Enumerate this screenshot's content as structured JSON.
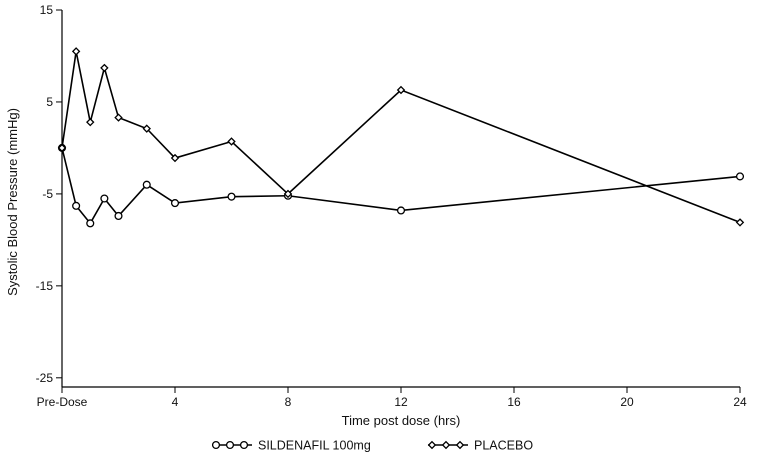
{
  "chart_data": {
    "type": "line",
    "xlabel": "Time post dose (hrs)",
    "ylabel": "Systolic Blood Pressure (mmHg)",
    "xlim": [
      0,
      24
    ],
    "ylim": [
      -26,
      15
    ],
    "xticks": [
      {
        "value": 0,
        "label": "Pre-Dose"
      },
      {
        "value": 4,
        "label": "4"
      },
      {
        "value": 8,
        "label": "8"
      },
      {
        "value": 12,
        "label": "12"
      },
      {
        "value": 16,
        "label": "16"
      },
      {
        "value": 20,
        "label": "20"
      },
      {
        "value": 24,
        "label": "24"
      }
    ],
    "yticks": [
      {
        "value": 15,
        "label": "15"
      },
      {
        "value": 5,
        "label": "5"
      },
      {
        "value": -5,
        "label": "-5"
      },
      {
        "value": -15,
        "label": "-15"
      },
      {
        "value": -25,
        "label": "-25"
      }
    ],
    "grid": false,
    "legend_position": "bottom",
    "series": [
      {
        "name": "SILDENAFIL 100mg",
        "marker": "circle",
        "color": "#000000",
        "points": [
          {
            "x": 0,
            "y": 0
          },
          {
            "x": 0.5,
            "y": -6.3
          },
          {
            "x": 1,
            "y": -8.2
          },
          {
            "x": 1.5,
            "y": -5.5
          },
          {
            "x": 2,
            "y": -7.4
          },
          {
            "x": 3,
            "y": -4.0
          },
          {
            "x": 4,
            "y": -6.0
          },
          {
            "x": 6,
            "y": -5.3
          },
          {
            "x": 8,
            "y": -5.2
          },
          {
            "x": 12,
            "y": -6.8
          },
          {
            "x": 24,
            "y": -3.1
          }
        ]
      },
      {
        "name": "PLACEBO",
        "marker": "diamond",
        "color": "#000000",
        "points": [
          {
            "x": 0,
            "y": 0
          },
          {
            "x": 0.5,
            "y": 10.5
          },
          {
            "x": 1,
            "y": 2.8
          },
          {
            "x": 1.5,
            "y": 8.7
          },
          {
            "x": 2,
            "y": 3.3
          },
          {
            "x": 3,
            "y": 2.1
          },
          {
            "x": 4,
            "y": -1.1
          },
          {
            "x": 6,
            "y": 0.7
          },
          {
            "x": 8,
            "y": -5.0
          },
          {
            "x": 12,
            "y": 6.3
          },
          {
            "x": 24,
            "y": -8.1
          }
        ]
      }
    ]
  }
}
